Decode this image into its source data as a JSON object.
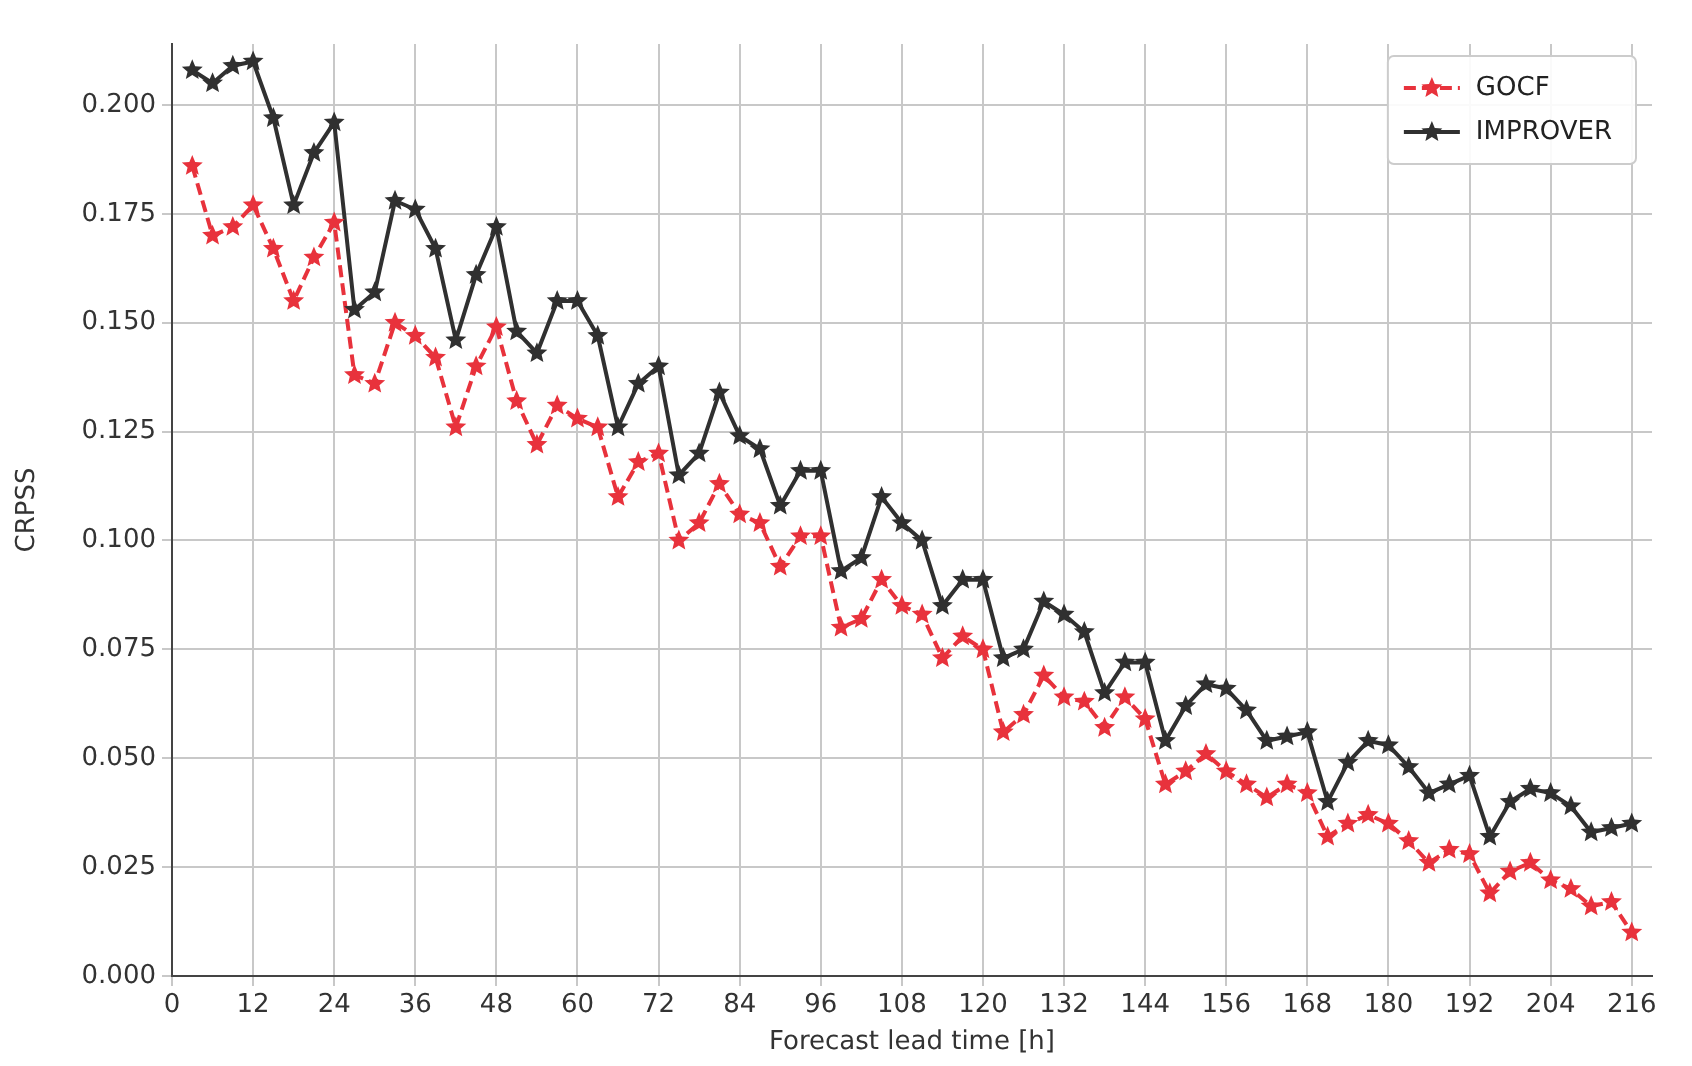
{
  "chart_data": {
    "type": "line",
    "xlabel": "Forecast lead time [h]",
    "ylabel": "CRPSS",
    "x": [
      3,
      6,
      9,
      12,
      15,
      18,
      21,
      24,
      27,
      30,
      33,
      36,
      39,
      42,
      45,
      48,
      51,
      54,
      57,
      60,
      63,
      66,
      69,
      72,
      75,
      78,
      81,
      84,
      87,
      90,
      93,
      96,
      99,
      102,
      105,
      108,
      111,
      114,
      117,
      120,
      123,
      126,
      129,
      132,
      135,
      138,
      141,
      144,
      147,
      150,
      153,
      156,
      159,
      162,
      165,
      168,
      171,
      174,
      177,
      180,
      183,
      186,
      189,
      192,
      195,
      198,
      201,
      204,
      207,
      210,
      213,
      216
    ],
    "series": [
      {
        "name": "GOCF",
        "color": "#e8323c",
        "line_style": "dashed",
        "values": [
          0.186,
          0.17,
          0.172,
          0.177,
          0.167,
          0.155,
          0.165,
          0.173,
          0.138,
          0.136,
          0.15,
          0.147,
          0.142,
          0.126,
          0.14,
          0.149,
          0.132,
          0.122,
          0.131,
          0.128,
          0.126,
          0.11,
          0.118,
          0.12,
          0.1,
          0.104,
          0.113,
          0.106,
          0.104,
          0.094,
          0.101,
          0.101,
          0.08,
          0.082,
          0.091,
          0.085,
          0.083,
          0.073,
          0.078,
          0.075,
          0.056,
          0.06,
          0.069,
          0.064,
          0.063,
          0.057,
          0.064,
          0.059,
          0.044,
          0.047,
          0.051,
          0.047,
          0.044,
          0.041,
          0.044,
          0.042,
          0.032,
          0.035,
          0.037,
          0.035,
          0.031,
          0.026,
          0.029,
          0.028,
          0.019,
          0.024,
          0.026,
          0.022,
          0.02,
          0.016,
          0.017,
          0.01
        ]
      },
      {
        "name": "IMPROVER",
        "color": "#303030",
        "line_style": "solid",
        "values": [
          0.208,
          0.205,
          0.209,
          0.21,
          0.197,
          0.177,
          0.189,
          0.196,
          0.153,
          0.157,
          0.178,
          0.176,
          0.167,
          0.146,
          0.161,
          0.172,
          0.148,
          0.143,
          0.155,
          0.155,
          0.147,
          0.126,
          0.136,
          0.14,
          0.115,
          0.12,
          0.134,
          0.124,
          0.121,
          0.108,
          0.116,
          0.116,
          0.093,
          0.096,
          0.11,
          0.104,
          0.1,
          0.085,
          0.091,
          0.091,
          0.073,
          0.075,
          0.086,
          0.083,
          0.079,
          0.065,
          0.072,
          0.072,
          0.054,
          0.062,
          0.067,
          0.066,
          0.061,
          0.054,
          0.055,
          0.056,
          0.04,
          0.049,
          0.054,
          0.053,
          0.048,
          0.042,
          0.044,
          0.046,
          0.032,
          0.04,
          0.043,
          0.042,
          0.039,
          0.033,
          0.034,
          0.035
        ]
      }
    ],
    "xlim": [
      0,
      219
    ],
    "xticks": [
      0,
      12,
      24,
      36,
      48,
      60,
      72,
      84,
      96,
      108,
      120,
      132,
      144,
      156,
      168,
      180,
      192,
      204,
      216
    ],
    "ylim": [
      0,
      0.214
    ],
    "yticks": [
      {
        "value": 0,
        "label": "0.000"
      },
      0.025,
      {
        "value": 0.05,
        "label": "0.050"
      },
      0.075,
      {
        "value": 0.1,
        "label": "0.100"
      },
      0.125,
      {
        "value": 0.15,
        "label": "0.150"
      },
      0.175,
      {
        "value": 0.2,
        "label": "0.200"
      }
    ],
    "grid": true,
    "legend": "top right",
    "marker": "star"
  }
}
